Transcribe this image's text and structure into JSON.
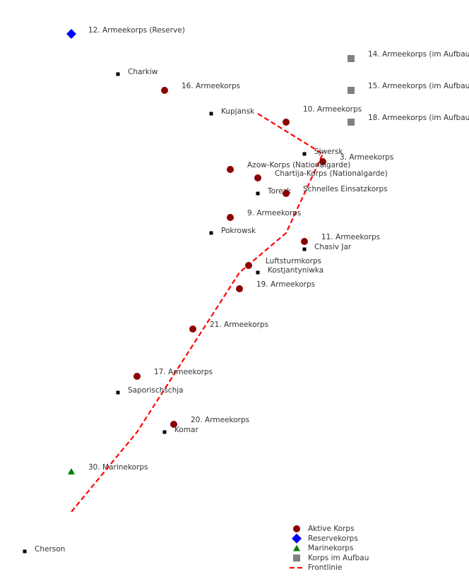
{
  "colors": {
    "active": "#8b0000",
    "reserve": "#0000ff",
    "marine": "#008000",
    "forming": "#808080",
    "city": "#000000",
    "frontline": "#ff0000"
  },
  "corps": [
    {
      "label": "12. Armeekorps (Reserve)",
      "type": "reserve"
    },
    {
      "label": "16. Armeekorps",
      "type": "active"
    },
    {
      "label": "10. Armeekorps",
      "type": "active"
    },
    {
      "label": "14. Armeekorps (im Aufbau)",
      "type": "forming"
    },
    {
      "label": "15. Armeekorps (im Aufbau)",
      "type": "forming"
    },
    {
      "label": "18. Armeekorps (im Aufbau)",
      "type": "forming"
    },
    {
      "label": "3. Armeekorps",
      "type": "active"
    },
    {
      "label": "Azow-Korps (Nationalgarde)",
      "type": "active"
    },
    {
      "label": "Chartija-Korps (Nationalgarde)",
      "type": "active"
    },
    {
      "label": "Schnelles Einsatzkorps",
      "type": "active"
    },
    {
      "label": "9. Armeekorps",
      "type": "active"
    },
    {
      "label": "11. Armeekorps",
      "type": "active"
    },
    {
      "label": "Luftsturmkorps",
      "type": "active"
    },
    {
      "label": "19. Armeekorps",
      "type": "active"
    },
    {
      "label": "21. Armeekorps",
      "type": "active"
    },
    {
      "label": "17. Armeekorps",
      "type": "active"
    },
    {
      "label": "20. Armeekorps",
      "type": "active"
    },
    {
      "label": "30. Marinekorps",
      "type": "marine"
    }
  ],
  "cities": [
    "Charkiw",
    "Kupjansk",
    "Sjwersk",
    "Torezk",
    "Pokrowsk",
    "Chasiv Jar",
    "Kostjantyniwka",
    "Saporischschja",
    "Komar",
    "Cherson"
  ],
  "legend": {
    "placement": "bottom-right",
    "items": [
      {
        "label": "Aktive Korps",
        "type": "active"
      },
      {
        "label": "Reservekorps",
        "type": "reserve"
      },
      {
        "label": "Marinekorps",
        "type": "marine"
      },
      {
        "label": "Korps im Aufbau",
        "type": "forming"
      },
      {
        "label": "Frontlinie",
        "type": "frontline"
      }
    ]
  }
}
